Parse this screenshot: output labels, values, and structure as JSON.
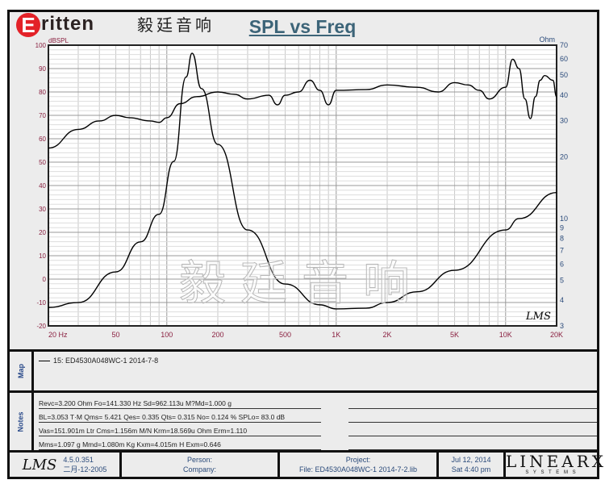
{
  "logo": {
    "brand": "Eritten",
    "chinese": "毅廷音响"
  },
  "watermark": "毅廷音响",
  "chart_data": {
    "type": "line",
    "title": "SPL vs Freq",
    "xlabel": "",
    "ylabel": "dBSPL",
    "y2label": "Ohm",
    "xscale": "log",
    "xlim": [
      20,
      20000
    ],
    "ylim": [
      -20,
      100
    ],
    "y2lim": [
      3,
      70
    ],
    "y2scale": "log",
    "x_tick_labels": [
      "20 Hz",
      "50",
      "100",
      "200",
      "500",
      "1K",
      "2K",
      "5K",
      "10K",
      "20K"
    ],
    "x_ticks": [
      20,
      50,
      100,
      200,
      500,
      1000,
      2000,
      5000,
      10000,
      20000
    ],
    "y_ticks": [
      100,
      90,
      80,
      70,
      60,
      50,
      40,
      30,
      20,
      10,
      0,
      -10,
      -20
    ],
    "y2_ticks": [
      70,
      60,
      50,
      40,
      30,
      20,
      10,
      9,
      8,
      7,
      6,
      5,
      4,
      3
    ],
    "grid": true,
    "series": [
      {
        "axis": "left",
        "x": [
          20,
          30,
          40,
          50,
          60,
          80,
          90,
          100,
          120,
          150,
          200,
          250,
          300,
          400,
          450,
          500,
          600,
          700,
          800,
          900,
          1000,
          1500,
          2000,
          3000,
          4000,
          5000,
          6000,
          7000,
          8000,
          10000,
          11000,
          12000,
          13000,
          14000,
          15000,
          16000,
          17000,
          19000,
          20000
        ],
        "y": [
          56,
          64,
          67.6,
          70,
          69,
          67.6,
          67,
          69,
          75,
          78,
          80,
          79,
          77,
          78.6,
          74.5,
          78.6,
          80,
          85,
          80.7,
          74.5,
          80.7,
          81,
          83,
          82,
          80,
          84,
          83,
          80.7,
          77,
          82,
          94,
          90,
          77,
          68.6,
          78,
          85,
          87,
          85,
          78
        ]
      },
      {
        "axis": "right",
        "x": [
          20,
          30,
          50,
          70,
          90,
          110,
          130,
          141,
          160,
          200,
          300,
          500,
          800,
          1000,
          1500,
          2000,
          3000,
          5000,
          10000,
          12000,
          20000
        ],
        "y": [
          3.69,
          3.9,
          5.5,
          7.7,
          10.5,
          19,
          49,
          64,
          43,
          23,
          8.8,
          4.8,
          3.8,
          3.63,
          3.66,
          3.9,
          4.4,
          5.6,
          8.8,
          10,
          13.4
        ]
      }
    ]
  },
  "map": {
    "label": "Map",
    "entry": "15: ED4530A048WC-1    2014-7-8"
  },
  "notes": {
    "label": "Notes",
    "lines": [
      "Revc=3.200 Ohm  Fo=141.330 Hz  Sd=962.113u M?Md=1.000 g",
      "BL=3.053 T·M  Qms= 5.421  Qes= 0.335  Qts= 0.315  No= 0.124 %  SPLo= 83.0 dB",
      "Vas=151.901m Ltr  Cms=1.156m M/N  Krm=18.569u Ohm  Erm=1.110",
      "Mms=1.097 g  Mmd=1.080m Kg  Kxm=4.015m H  Exm=0.646"
    ]
  },
  "footer": {
    "lms": "LMS",
    "version": "4.5.0.351",
    "date_built": "二月-12-2005",
    "person": "Person:",
    "company": "Company:",
    "project": "Project:",
    "file": "File: ED4530A048WC-1   2014-7-2.lib",
    "date": "Jul 12, 2014",
    "time": "Sat  4:40 pm",
    "brand": "LINEARX",
    "brand_sub": "S Y S T E M S"
  },
  "plot_badge": "LMS"
}
